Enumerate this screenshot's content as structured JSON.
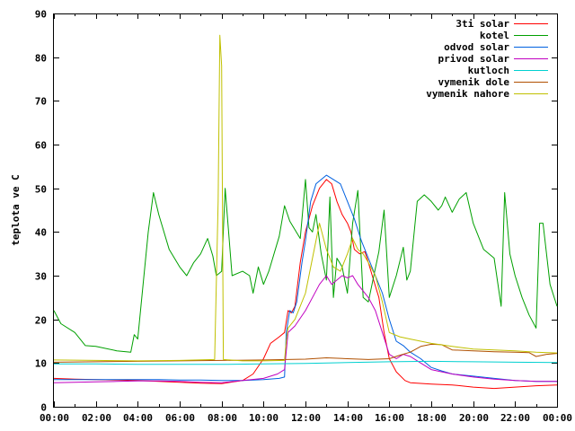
{
  "chart_data": {
    "type": "line",
    "xlabel": "",
    "ylabel": "teplota ve C",
    "xlim": [
      "00:00",
      "24:00"
    ],
    "ylim": [
      0,
      90
    ],
    "grid": false,
    "legend_position": "top-right",
    "x_ticks": [
      "00:00",
      "02:00",
      "04:00",
      "06:00",
      "08:00",
      "10:00",
      "12:00",
      "14:00",
      "16:00",
      "18:00",
      "20:00",
      "22:00",
      "00:00"
    ],
    "y_ticks": [
      0,
      10,
      20,
      30,
      40,
      50,
      60,
      70,
      80,
      90
    ],
    "series": [
      {
        "name": "3ti solar",
        "color": "#ff0000",
        "points": [
          [
            "00:00",
            6.5
          ],
          [
            "01:00",
            6.3
          ],
          [
            "02:00",
            6.2
          ],
          [
            "03:00",
            6.1
          ],
          [
            "04:00",
            6.0
          ],
          [
            "05:00",
            5.8
          ],
          [
            "06:00",
            5.6
          ],
          [
            "07:00",
            5.4
          ],
          [
            "08:00",
            5.3
          ],
          [
            "09:00",
            6.0
          ],
          [
            "09:30",
            7.5
          ],
          [
            "10:00",
            11
          ],
          [
            "10:20",
            14.5
          ],
          [
            "10:45",
            16
          ],
          [
            "11:00",
            17
          ],
          [
            "11:10",
            22
          ],
          [
            "11:20",
            21.5
          ],
          [
            "11:30",
            23
          ],
          [
            "11:45",
            33
          ],
          [
            "12:00",
            40
          ],
          [
            "12:20",
            46
          ],
          [
            "12:40",
            50
          ],
          [
            "13:00",
            52
          ],
          [
            "13:15",
            51
          ],
          [
            "13:30",
            47
          ],
          [
            "13:45",
            44
          ],
          [
            "14:00",
            42
          ],
          [
            "14:10",
            40
          ],
          [
            "14:20",
            36
          ],
          [
            "14:35",
            35
          ],
          [
            "14:50",
            35.5
          ],
          [
            "15:00",
            33
          ],
          [
            "15:15",
            29
          ],
          [
            "15:30",
            25
          ],
          [
            "15:45",
            17
          ],
          [
            "16:00",
            11
          ],
          [
            "16:20",
            8
          ],
          [
            "16:45",
            6
          ],
          [
            "17:00",
            5.5
          ],
          [
            "18:00",
            5.2
          ],
          [
            "19:00",
            5.0
          ],
          [
            "20:00",
            4.5
          ],
          [
            "21:00",
            4.2
          ],
          [
            "22:00",
            4.5
          ],
          [
            "23:00",
            4.8
          ],
          [
            "24:00",
            5.0
          ]
        ]
      },
      {
        "name": "kotel",
        "color": "#00a000",
        "points": [
          [
            "00:00",
            22
          ],
          [
            "00:20",
            19
          ],
          [
            "01:00",
            17
          ],
          [
            "01:30",
            14
          ],
          [
            "02:00",
            13.8
          ],
          [
            "03:00",
            12.8
          ],
          [
            "03:40",
            12.5
          ],
          [
            "03:50",
            16.5
          ],
          [
            "04:00",
            15.5
          ],
          [
            "04:30",
            40
          ],
          [
            "04:45",
            49
          ],
          [
            "05:00",
            44
          ],
          [
            "05:30",
            36
          ],
          [
            "06:00",
            32
          ],
          [
            "06:20",
            30
          ],
          [
            "06:40",
            33
          ],
          [
            "07:00",
            35
          ],
          [
            "07:20",
            38.5
          ],
          [
            "07:35",
            34.5
          ],
          [
            "07:45",
            30
          ],
          [
            "08:00",
            31
          ],
          [
            "08:10",
            50
          ],
          [
            "08:30",
            30
          ],
          [
            "09:00",
            31
          ],
          [
            "09:20",
            30
          ],
          [
            "09:30",
            26
          ],
          [
            "09:45",
            32
          ],
          [
            "10:00",
            28
          ],
          [
            "10:15",
            31
          ],
          [
            "10:45",
            39
          ],
          [
            "11:00",
            46
          ],
          [
            "11:15",
            42.5
          ],
          [
            "11:30",
            40.5
          ],
          [
            "11:45",
            38.5
          ],
          [
            "12:00",
            52
          ],
          [
            "12:10",
            41
          ],
          [
            "12:20",
            40
          ],
          [
            "12:30",
            44
          ],
          [
            "12:45",
            35
          ],
          [
            "13:00",
            29
          ],
          [
            "13:10",
            48
          ],
          [
            "13:20",
            25
          ],
          [
            "13:30",
            34
          ],
          [
            "13:45",
            32
          ],
          [
            "14:00",
            26
          ],
          [
            "14:15",
            42
          ],
          [
            "14:30",
            49.5
          ],
          [
            "14:45",
            25
          ],
          [
            "15:00",
            24
          ],
          [
            "15:30",
            35.5
          ],
          [
            "15:45",
            45
          ],
          [
            "16:00",
            25
          ],
          [
            "16:20",
            30
          ],
          [
            "16:40",
            36.5
          ],
          [
            "16:50",
            29
          ],
          [
            "17:00",
            31
          ],
          [
            "17:20",
            47
          ],
          [
            "17:40",
            48.5
          ],
          [
            "18:00",
            47
          ],
          [
            "18:20",
            45
          ],
          [
            "18:30",
            46
          ],
          [
            "18:40",
            48
          ],
          [
            "19:00",
            44.5
          ],
          [
            "19:20",
            47.5
          ],
          [
            "19:40",
            49
          ],
          [
            "20:00",
            42
          ],
          [
            "20:30",
            36
          ],
          [
            "21:00",
            34
          ],
          [
            "21:20",
            23
          ],
          [
            "21:30",
            49
          ],
          [
            "21:45",
            35
          ],
          [
            "22:00",
            30
          ],
          [
            "22:20",
            25
          ],
          [
            "22:40",
            21
          ],
          [
            "23:00",
            18
          ],
          [
            "23:10",
            42
          ],
          [
            "23:20",
            42
          ],
          [
            "23:40",
            28
          ],
          [
            "24:00",
            23
          ]
        ]
      },
      {
        "name": "odvod solar",
        "color": "#0060e0",
        "points": [
          [
            "00:00",
            6.2
          ],
          [
            "01:00",
            6.2
          ],
          [
            "02:00",
            6.2
          ],
          [
            "03:00",
            6.2
          ],
          [
            "04:00",
            6.2
          ],
          [
            "05:00",
            6.2
          ],
          [
            "06:00",
            6.1
          ],
          [
            "07:00",
            6.1
          ],
          [
            "08:00",
            6.0
          ],
          [
            "09:00",
            6.0
          ],
          [
            "10:00",
            6.2
          ],
          [
            "10:45",
            6.5
          ],
          [
            "11:00",
            6.8
          ],
          [
            "11:05",
            17
          ],
          [
            "11:15",
            22
          ],
          [
            "11:25",
            21.5
          ],
          [
            "11:35",
            24
          ],
          [
            "11:50",
            33
          ],
          [
            "12:00",
            38
          ],
          [
            "12:15",
            47
          ],
          [
            "12:30",
            51
          ],
          [
            "13:00",
            53
          ],
          [
            "13:20",
            52
          ],
          [
            "13:40",
            51
          ],
          [
            "14:00",
            47
          ],
          [
            "14:20",
            43
          ],
          [
            "14:40",
            38
          ],
          [
            "15:00",
            34
          ],
          [
            "15:20",
            30
          ],
          [
            "15:40",
            26
          ],
          [
            "16:00",
            20
          ],
          [
            "16:20",
            15
          ],
          [
            "16:40",
            14
          ],
          [
            "17:00",
            12.5
          ],
          [
            "17:30",
            11
          ],
          [
            "18:00",
            9
          ],
          [
            "18:30",
            8.2
          ],
          [
            "19:00",
            7.5
          ],
          [
            "20:00",
            7
          ],
          [
            "21:00",
            6.5
          ],
          [
            "22:00",
            6
          ],
          [
            "23:00",
            5.8
          ],
          [
            "24:00",
            5.8
          ]
        ]
      },
      {
        "name": "privod solar",
        "color": "#c000c0",
        "points": [
          [
            "00:00",
            5.5
          ],
          [
            "01:00",
            5.6
          ],
          [
            "02:00",
            5.7
          ],
          [
            "03:00",
            5.8
          ],
          [
            "04:00",
            5.9
          ],
          [
            "05:00",
            5.9
          ],
          [
            "06:00",
            5.8
          ],
          [
            "07:00",
            5.6
          ],
          [
            "08:00",
            5.5
          ],
          [
            "09:00",
            6.0
          ],
          [
            "10:00",
            6.5
          ],
          [
            "10:40",
            7.5
          ],
          [
            "11:00",
            8.5
          ],
          [
            "11:10",
            17
          ],
          [
            "11:30",
            18.5
          ],
          [
            "12:00",
            22
          ],
          [
            "12:20",
            25
          ],
          [
            "12:40",
            28
          ],
          [
            "13:00",
            30
          ],
          [
            "13:15",
            28
          ],
          [
            "13:30",
            29
          ],
          [
            "13:45",
            30
          ],
          [
            "14:00",
            29.5
          ],
          [
            "14:15",
            30
          ],
          [
            "14:30",
            28
          ],
          [
            "15:00",
            25
          ],
          [
            "15:20",
            22
          ],
          [
            "15:40",
            17
          ],
          [
            "16:00",
            12
          ],
          [
            "16:20",
            11
          ],
          [
            "16:40",
            12
          ],
          [
            "17:00",
            11.5
          ],
          [
            "17:30",
            10
          ],
          [
            "18:00",
            8.5
          ],
          [
            "18:30",
            8
          ],
          [
            "19:00",
            7.5
          ],
          [
            "20:00",
            6.8
          ],
          [
            "21:00",
            6.3
          ],
          [
            "22:00",
            6.0
          ],
          [
            "23:00",
            5.8
          ],
          [
            "24:00",
            5.8
          ]
        ]
      },
      {
        "name": "kutloch",
        "color": "#00d0d0",
        "points": [
          [
            "00:00",
            9.8
          ],
          [
            "02:00",
            9.8
          ],
          [
            "04:00",
            9.7
          ],
          [
            "06:00",
            9.7
          ],
          [
            "08:00",
            9.7
          ],
          [
            "10:00",
            9.8
          ],
          [
            "12:00",
            9.9
          ],
          [
            "14:00",
            10.1
          ],
          [
            "16:00",
            10.3
          ],
          [
            "18:00",
            10.4
          ],
          [
            "20:00",
            10.3
          ],
          [
            "22:00",
            10.2
          ],
          [
            "24:00",
            10.1
          ]
        ]
      },
      {
        "name": "vymenik dole",
        "color": "#b05000",
        "points": [
          [
            "00:00",
            10.2
          ],
          [
            "02:00",
            10.3
          ],
          [
            "04:00",
            10.4
          ],
          [
            "06:00",
            10.5
          ],
          [
            "08:00",
            10.6
          ],
          [
            "10:00",
            10.7
          ],
          [
            "12:00",
            10.9
          ],
          [
            "13:00",
            11.2
          ],
          [
            "14:00",
            11.0
          ],
          [
            "15:00",
            10.8
          ],
          [
            "16:00",
            11.0
          ],
          [
            "16:30",
            11.8
          ],
          [
            "17:00",
            12.5
          ],
          [
            "17:30",
            13.8
          ],
          [
            "18:00",
            14.3
          ],
          [
            "18:30",
            14.2
          ],
          [
            "19:00",
            13
          ],
          [
            "20:00",
            12.8
          ],
          [
            "21:00",
            12.6
          ],
          [
            "22:00",
            12.5
          ],
          [
            "22:40",
            12.4
          ],
          [
            "23:00",
            11.5
          ],
          [
            "23:30",
            12
          ],
          [
            "24:00",
            12.2
          ]
        ]
      },
      {
        "name": "vymenik nahore",
        "color": "#c0c000",
        "points": [
          [
            "00:00",
            10.7
          ],
          [
            "02:00",
            10.6
          ],
          [
            "04:00",
            10.5
          ],
          [
            "06:00",
            10.6
          ],
          [
            "07:40",
            10.8
          ],
          [
            "07:50",
            47
          ],
          [
            "07:55",
            85
          ],
          [
            "08:00",
            78
          ],
          [
            "08:05",
            10.8
          ],
          [
            "09:00",
            10.5
          ],
          [
            "10:00",
            10.5
          ],
          [
            "11:00",
            10.6
          ],
          [
            "11:05",
            15
          ],
          [
            "11:10",
            18
          ],
          [
            "11:30",
            20
          ],
          [
            "12:00",
            26
          ],
          [
            "12:20",
            34
          ],
          [
            "12:40",
            42
          ],
          [
            "13:00",
            36
          ],
          [
            "13:20",
            32
          ],
          [
            "13:40",
            31
          ],
          [
            "14:00",
            35
          ],
          [
            "14:15",
            38.5
          ],
          [
            "14:30",
            36
          ],
          [
            "14:45",
            35
          ],
          [
            "15:00",
            33
          ],
          [
            "15:20",
            30
          ],
          [
            "15:40",
            24
          ],
          [
            "16:00",
            17
          ],
          [
            "16:30",
            16
          ],
          [
            "17:00",
            15.5
          ],
          [
            "17:30",
            15
          ],
          [
            "18:00",
            14.5
          ],
          [
            "19:00",
            13.8
          ],
          [
            "20:00",
            13.2
          ],
          [
            "21:00",
            13
          ],
          [
            "22:00",
            12.8
          ],
          [
            "23:00",
            12.5
          ],
          [
            "24:00",
            12.3
          ]
        ]
      }
    ]
  }
}
